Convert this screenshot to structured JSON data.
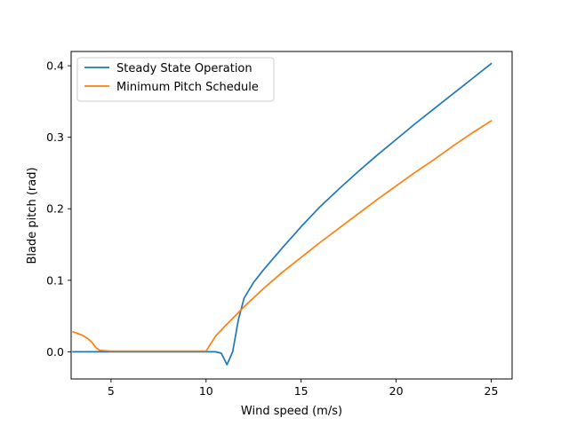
{
  "chart_data": {
    "type": "line",
    "xlabel": "Wind speed (m/s)",
    "ylabel": "Blade pitch (rad)",
    "xlim": [
      2.9,
      26.1
    ],
    "ylim": [
      -0.038,
      0.42
    ],
    "xticks": [
      {
        "value": 5,
        "label": "5"
      },
      {
        "value": 10,
        "label": "10"
      },
      {
        "value": 15,
        "label": "15"
      },
      {
        "value": 20,
        "label": "20"
      },
      {
        "value": 25,
        "label": "25"
      }
    ],
    "yticks": [
      {
        "value": 0.0,
        "label": "0.0"
      },
      {
        "value": 0.1,
        "label": "0.1"
      },
      {
        "value": 0.2,
        "label": "0.2"
      },
      {
        "value": 0.3,
        "label": "0.3"
      },
      {
        "value": 0.4,
        "label": "0.4"
      }
    ],
    "grid": false,
    "legend_position": "upper-left",
    "series": [
      {
        "name": "Steady State Operation",
        "color": "#1f77b4",
        "x": [
          3,
          4,
          5,
          6,
          7,
          8,
          9,
          10,
          10.5,
          10.8,
          11.1,
          11.4,
          11.7,
          12,
          12.5,
          13,
          14,
          15,
          16,
          17,
          18,
          19,
          20,
          21,
          22,
          23,
          24,
          25
        ],
        "y": [
          0.0,
          0.0,
          0.0,
          0.0,
          0.0,
          0.0,
          0.0,
          0.0,
          0.0,
          -0.002,
          -0.018,
          0.0,
          0.045,
          0.075,
          0.097,
          0.114,
          0.145,
          0.175,
          0.203,
          0.228,
          0.252,
          0.275,
          0.297,
          0.319,
          0.34,
          0.361,
          0.382,
          0.403
        ]
      },
      {
        "name": "Minimum Pitch Schedule",
        "color": "#ff7f0e",
        "x": [
          3,
          3.5,
          3.8,
          4.0,
          4.2,
          4.4,
          5,
          6,
          7,
          8,
          9,
          10,
          10.5,
          11,
          12,
          13,
          14,
          15,
          16,
          17,
          18,
          19,
          20,
          21,
          22,
          23,
          24,
          25
        ],
        "y": [
          0.028,
          0.023,
          0.018,
          0.013,
          0.006,
          0.002,
          0.001,
          0.001,
          0.001,
          0.001,
          0.001,
          0.001,
          0.022,
          0.036,
          0.063,
          0.088,
          0.111,
          0.132,
          0.153,
          0.173,
          0.193,
          0.213,
          0.232,
          0.251,
          0.269,
          0.288,
          0.306,
          0.323
        ]
      }
    ]
  }
}
